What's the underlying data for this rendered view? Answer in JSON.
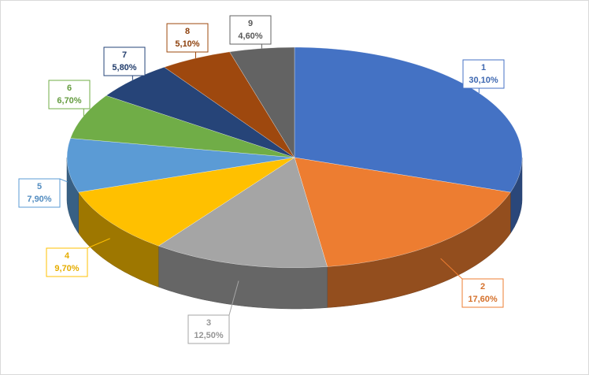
{
  "chart_data": {
    "type": "pie",
    "categories": [
      "1",
      "2",
      "3",
      "4",
      "5",
      "6",
      "7",
      "8",
      "9"
    ],
    "values": [
      30.1,
      17.6,
      12.5,
      9.7,
      7.9,
      6.7,
      5.8,
      5.1,
      4.6
    ],
    "value_labels": [
      "30,10%",
      "17,60%",
      "12,50%",
      "9,70%",
      "7,90%",
      "6,70%",
      "5,80%",
      "5,10%",
      "4,60%"
    ],
    "colors": [
      "#4472c4",
      "#ed7d31",
      "#a5a5a5",
      "#ffc000",
      "#5b9bd5",
      "#70ad47",
      "#264478",
      "#9e480e",
      "#636363"
    ]
  }
}
